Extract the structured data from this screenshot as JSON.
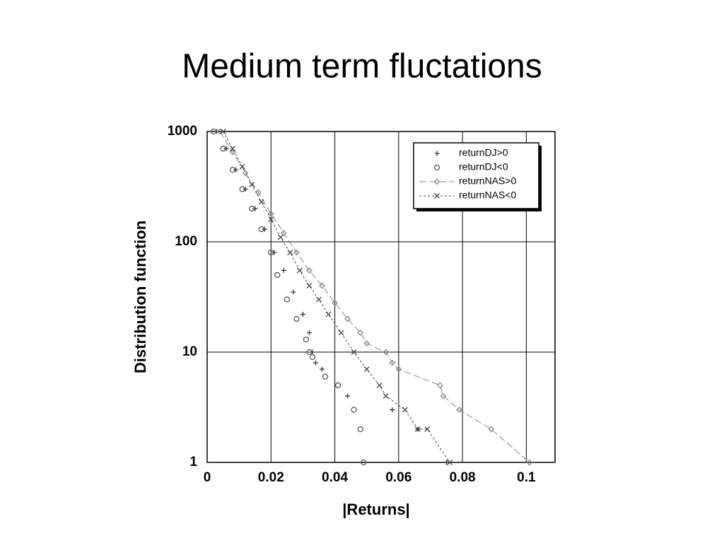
{
  "chart_data": {
    "type": "scatter",
    "title": "Medium term fluctations",
    "x_label": "|Returns|",
    "y_label": "Distribution function",
    "xlim": [
      0,
      0.109
    ],
    "ylim": [
      1,
      1000
    ],
    "y_log": true,
    "grid": true,
    "legend": "upper right",
    "xticks": [
      0,
      0.02,
      0.04,
      0.06,
      0.08,
      0.1
    ],
    "yticks": [
      1,
      10,
      100,
      1000
    ],
    "series": [
      {
        "name": "returnDJ>0",
        "color": "#333333",
        "marker": "plus",
        "line": "none",
        "x": [
          0.003,
          0.006,
          0.009,
          0.012,
          0.015,
          0.018,
          0.021,
          0.024,
          0.027,
          0.03,
          0.032,
          0.033,
          0.034,
          0.036,
          0.044,
          0.058,
          0.066,
          0.075
        ],
        "values": [
          1000,
          700,
          450,
          300,
          200,
          130,
          80,
          55,
          35,
          22,
          15,
          10,
          8,
          7,
          4,
          3,
          2,
          1
        ]
      },
      {
        "name": "returnDJ<0",
        "color": "#555555",
        "marker": "circle",
        "line": "none",
        "x": [
          0.002,
          0.005,
          0.008,
          0.011,
          0.014,
          0.017,
          0.02,
          0.022,
          0.025,
          0.028,
          0.031,
          0.032,
          0.033,
          0.037,
          0.041,
          0.046,
          0.048,
          0.049
        ],
        "values": [
          1000,
          700,
          450,
          300,
          200,
          130,
          80,
          50,
          30,
          20,
          13,
          10,
          9,
          6,
          5,
          3,
          2,
          1
        ]
      },
      {
        "name": "returnNAS>0",
        "color": "#888888",
        "marker": "diamond",
        "line": "dash",
        "x": [
          0.004,
          0.008,
          0.012,
          0.016,
          0.02,
          0.024,
          0.028,
          0.032,
          0.036,
          0.04,
          0.044,
          0.048,
          0.05,
          0.056,
          0.058,
          0.06,
          0.073,
          0.074,
          0.079,
          0.089,
          0.101
        ],
        "values": [
          1000,
          650,
          420,
          280,
          180,
          120,
          80,
          55,
          40,
          28,
          20,
          15,
          12,
          10,
          8,
          7,
          5,
          4,
          3,
          2,
          1
        ]
      },
      {
        "name": "returnNAS<0",
        "color": "#444444",
        "marker": "cross",
        "line": "dot",
        "x": [
          0.005,
          0.008,
          0.011,
          0.014,
          0.017,
          0.02,
          0.023,
          0.026,
          0.029,
          0.032,
          0.035,
          0.038,
          0.042,
          0.046,
          0.05,
          0.054,
          0.056,
          0.062,
          0.066,
          0.069,
          0.076
        ],
        "values": [
          1000,
          700,
          480,
          330,
          230,
          160,
          110,
          80,
          55,
          40,
          30,
          22,
          15,
          10,
          7,
          5,
          4,
          3,
          2,
          2,
          1
        ]
      }
    ]
  }
}
